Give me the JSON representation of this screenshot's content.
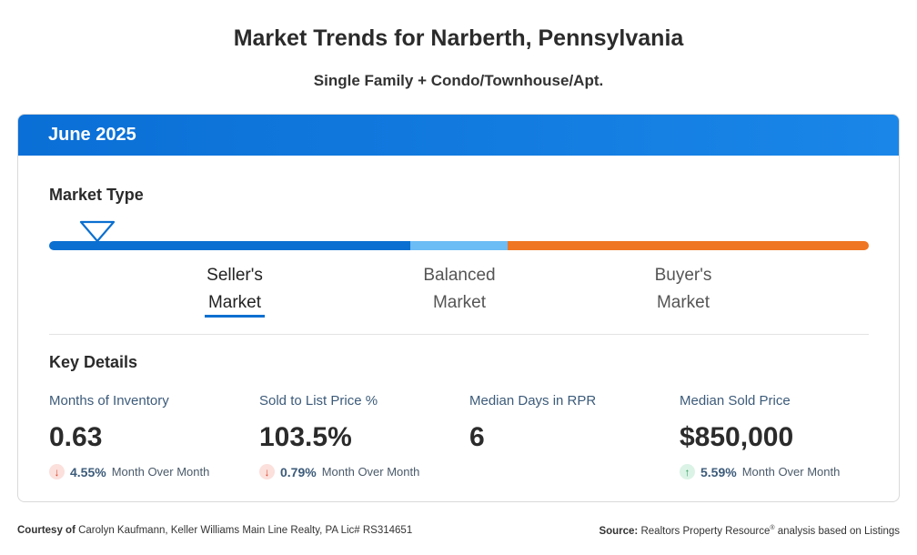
{
  "title": "Market Trends for Narberth, Pennsylvania",
  "subtitle": "Single Family + Condo/Townhouse/Apt.",
  "card": {
    "period": "June 2025",
    "market_type_title": "Market Type",
    "market_types": [
      {
        "line1": "Seller's",
        "line2": "Market",
        "active": true
      },
      {
        "line1": "Balanced",
        "line2": "Market",
        "active": false
      },
      {
        "line1": "Buyer's",
        "line2": "Market",
        "active": false
      }
    ],
    "segment_colors": {
      "seller": "#0a6fd0",
      "balanced": "#6cbcf5",
      "buyer": "#ef7622"
    },
    "key_details_title": "Key Details",
    "stats": [
      {
        "label": "Months of Inventory",
        "value": "0.63",
        "change": "4.55%",
        "direction": "down",
        "change_label": "Month Over Month"
      },
      {
        "label": "Sold to List Price %",
        "value": "103.5%",
        "change": "0.79%",
        "direction": "down",
        "change_label": "Month Over Month"
      },
      {
        "label": "Median Days in RPR",
        "value": "6"
      },
      {
        "label": "Median Sold Price",
        "value": "$850,000",
        "change": "5.59%",
        "direction": "up",
        "change_label": "Month Over Month"
      }
    ]
  },
  "footer": {
    "courtesy_label": "Courtesy of",
    "courtesy_text": "Carolyn Kaufmann, Keller Williams Main Line Realty, PA Lic# RS314651",
    "source_label": "Source:",
    "source_text_1": "Realtors Property Resource",
    "source_reg": "®",
    "source_text_2": " analysis based on Listings"
  }
}
